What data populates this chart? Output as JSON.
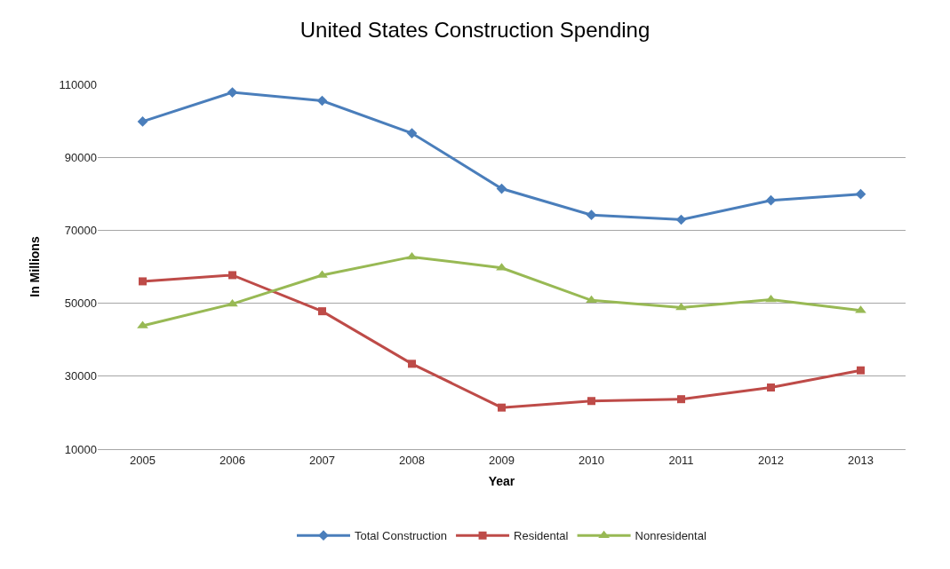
{
  "chart_data": {
    "type": "line",
    "title": "United States Construction Spending",
    "xlabel": "Year",
    "ylabel": "In Millions",
    "categories": [
      "2005",
      "2006",
      "2007",
      "2008",
      "2009",
      "2010",
      "2011",
      "2012",
      "2013"
    ],
    "series": [
      {
        "name": "Total Construction",
        "color": "#4a7ebb",
        "marker": "diamond",
        "values": [
          99800,
          107800,
          105500,
          96600,
          81400,
          74200,
          72900,
          78200,
          79900
        ]
      },
      {
        "name": "Residental",
        "color": "#be4b48",
        "marker": "square",
        "values": [
          56000,
          57700,
          47800,
          33400,
          21400,
          23200,
          23700,
          26900,
          31600
        ]
      },
      {
        "name": "Nonresidental",
        "color": "#98b954",
        "marker": "triangle",
        "values": [
          43800,
          49800,
          57700,
          62700,
          59700,
          50800,
          48800,
          51000,
          48000
        ]
      }
    ],
    "ylim": [
      10000,
      110000
    ],
    "yticks": [
      10000,
      30000,
      50000,
      70000,
      90000,
      110000
    ],
    "grid": "y",
    "legend": "bottom",
    "line_style": "solid"
  }
}
